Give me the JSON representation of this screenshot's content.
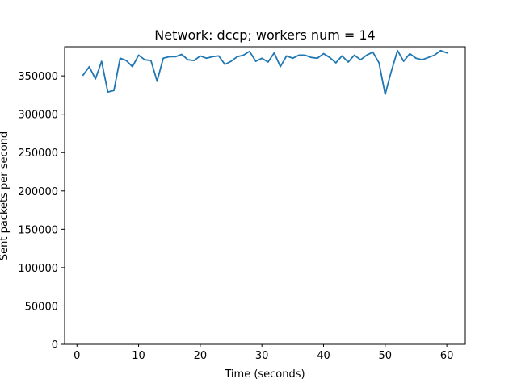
{
  "chart_data": {
    "type": "line",
    "title": "Network: dccp; workers num = 14",
    "xlabel": "Time (seconds)",
    "ylabel": "Sent packets per second",
    "xlim": [
      -2,
      63
    ],
    "ylim": [
      0,
      388000
    ],
    "xticks": [
      0,
      10,
      20,
      30,
      40,
      50,
      60
    ],
    "yticks": [
      0,
      50000,
      100000,
      150000,
      200000,
      250000,
      300000,
      350000
    ],
    "grid": false,
    "colors": {
      "line": "#1f77b4",
      "axes": "#000000",
      "background": "#ffffff"
    },
    "series": [
      {
        "x": [
          1,
          2,
          3,
          4,
          5,
          6,
          7,
          8,
          9,
          10,
          11,
          12,
          13,
          14,
          15,
          16,
          17,
          18,
          19,
          20,
          21,
          22,
          23,
          24,
          25,
          26,
          27,
          28,
          29,
          30,
          31,
          32,
          33,
          34,
          35,
          36,
          37,
          38,
          39,
          40,
          41,
          42,
          43,
          44,
          45,
          46,
          47,
          48,
          49,
          50,
          51,
          52,
          53,
          54,
          55,
          56,
          57,
          58,
          59,
          60
        ],
        "values": [
          351000,
          362000,
          346000,
          369000,
          329000,
          331000,
          373000,
          370000,
          362000,
          377000,
          371000,
          370000,
          343000,
          373000,
          375000,
          375000,
          378000,
          371000,
          370000,
          376000,
          373000,
          375000,
          376000,
          365000,
          369000,
          375000,
          377000,
          382000,
          369000,
          373000,
          368000,
          380000,
          362000,
          376000,
          373000,
          377000,
          377000,
          374000,
          373000,
          379000,
          374000,
          367000,
          376000,
          368000,
          377000,
          371000,
          377000,
          381000,
          367000,
          326000,
          356000,
          383000,
          369000,
          379000,
          373000,
          371000,
          374000,
          377000,
          383000,
          380000
        ]
      }
    ]
  }
}
